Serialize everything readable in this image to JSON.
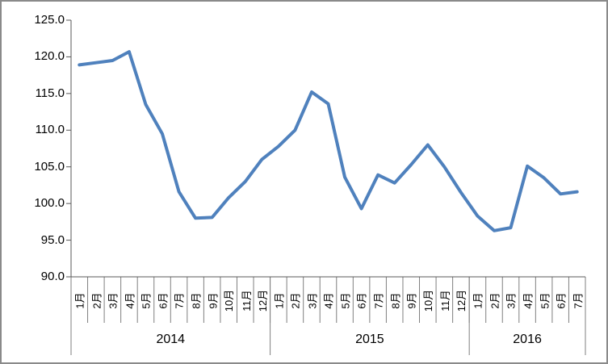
{
  "chart_data": {
    "type": "line",
    "title": "",
    "xlabel": "",
    "ylabel": "",
    "legend": "none",
    "grid": "off",
    "ylim": [
      90,
      125
    ],
    "y_tick_step": 5,
    "y_tick_labels": [
      "125.0",
      "120.0",
      "115.0",
      "110.0",
      "105.0",
      "100.0",
      "95.0",
      "90.0"
    ],
    "line_color": "#4F81BD",
    "x_groups": [
      {
        "year": "2014",
        "categories": [
          "1月",
          "2月",
          "3月",
          "4月",
          "5月",
          "6月",
          "7月",
          "8月",
          "9月",
          "10月",
          "11月",
          "12月"
        ],
        "values": [
          118.9,
          119.2,
          119.5,
          120.7,
          113.5,
          109.5,
          101.6,
          98.0,
          98.1,
          100.8,
          103.0,
          106.0
        ]
      },
      {
        "year": "2015",
        "categories": [
          "1月",
          "2月",
          "3月",
          "4月",
          "5月",
          "6月",
          "7月",
          "8月",
          "9月",
          "10月",
          "11月",
          "12月"
        ],
        "values": [
          107.8,
          110.0,
          115.2,
          113.6,
          103.6,
          99.3,
          103.9,
          102.8,
          105.3,
          108.0,
          105.0,
          101.5
        ]
      },
      {
        "year": "2016",
        "categories": [
          "1月",
          "2月",
          "3月",
          "4月",
          "5月",
          "6月",
          "7月"
        ],
        "values": [
          98.3,
          96.3,
          96.7,
          105.1,
          103.5,
          101.3,
          101.6
        ]
      }
    ]
  }
}
